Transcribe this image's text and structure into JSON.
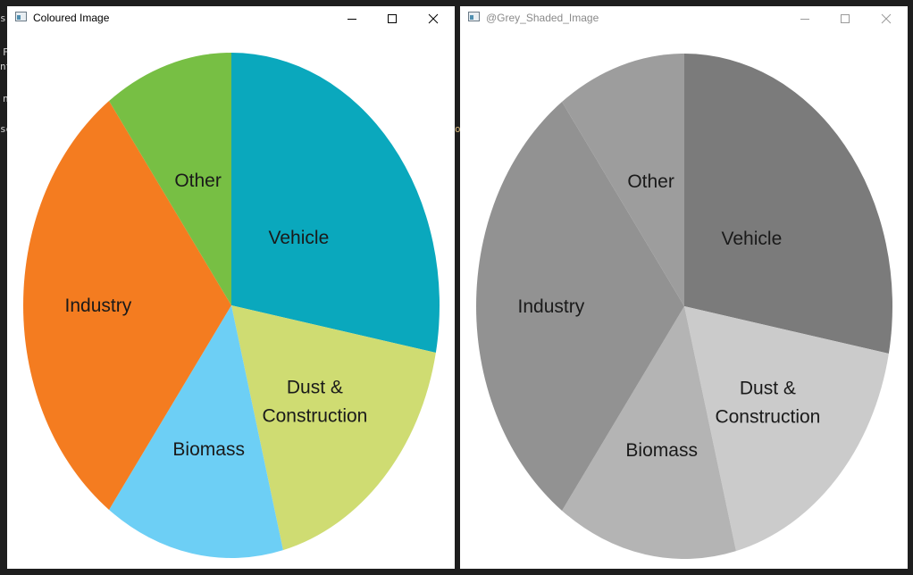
{
  "background_fragments": [
    {
      "text": "s"
    },
    {
      "text": "F"
    },
    {
      "text": "nt"
    },
    {
      "text": "n"
    },
    {
      "text": "se"
    },
    {
      "text": "o"
    }
  ],
  "windows": [
    {
      "title": "Coloured Image",
      "active": true
    },
    {
      "title": "@Grey_Shaded_Image",
      "active": false
    }
  ],
  "chart_data": [
    {
      "type": "pie",
      "title": "",
      "categories": [
        "Vehicle",
        "Dust & Construction",
        "Biomass",
        "Industry",
        "Other"
      ],
      "values": [
        28,
        18,
        14,
        30,
        10
      ],
      "colors": [
        "#0aa8bd",
        "#cfdc72",
        "#6dcff5",
        "#f47c20",
        "#77bf44"
      ],
      "start_angle_deg": 0,
      "direction": "clockwise"
    },
    {
      "type": "pie",
      "title": "",
      "categories": [
        "Vehicle",
        "Dust & Construction",
        "Biomass",
        "Industry",
        "Other"
      ],
      "values": [
        28,
        18,
        14,
        30,
        10
      ],
      "colors": [
        "#7b7b7b",
        "#cbcbcb",
        "#b4b4b4",
        "#929292",
        "#9d9d9d"
      ],
      "start_angle_deg": 0,
      "direction": "clockwise"
    }
  ]
}
